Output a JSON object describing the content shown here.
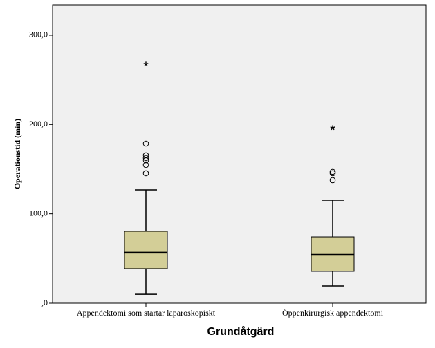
{
  "chart_data": {
    "type": "box",
    "y_label": "Operationstid (min)",
    "x_label": "Grundåtgärd",
    "categories": [
      "Appendektomi som startar laparoskopiskt",
      "Öppenkirurgisk appendektomi"
    ],
    "color": "#d3ce97",
    "background": "#f0f0f0",
    "whisker_low": [
      10,
      19.3
    ],
    "q1": [
      38.7,
      35.6
    ],
    "median": [
      56.5,
      54.1
    ],
    "q3": [
      80.4,
      74.2
    ],
    "whisker_high": [
      126.8,
      115.2
    ],
    "outliers": [
      [
        145.4,
        154.7,
        160,
        162.4,
        165.5,
        178.6
      ],
      [
        137.7,
        145.4,
        147
      ]
    ],
    "extremes": [
      [
        267.6
      ],
      [
        196.4
      ]
    ],
    "ylim": [
      0,
      334
    ],
    "yticks": [
      {
        "value": 0,
        "label": ",0"
      },
      {
        "value": 100,
        "label": "100,0"
      },
      {
        "value": 200,
        "label": "200,0"
      },
      {
        "value": 300,
        "label": "300,0"
      }
    ]
  }
}
